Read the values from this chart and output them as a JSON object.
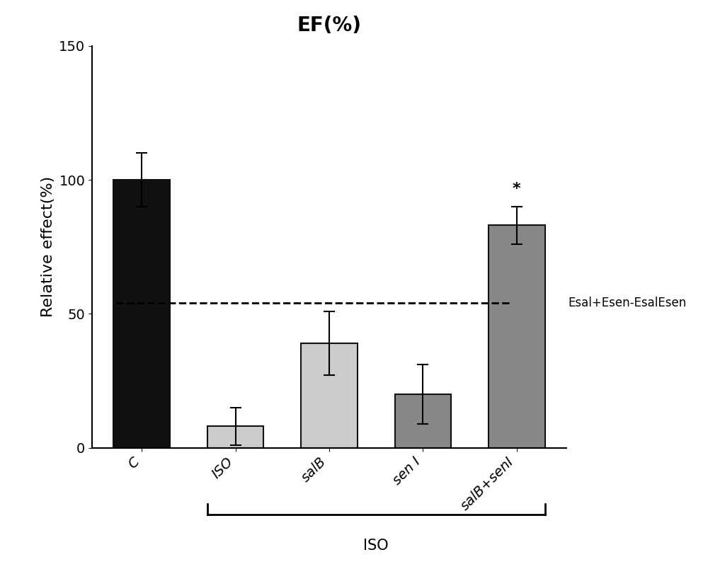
{
  "title": "EF(%)",
  "ylabel": "Relative effect(%)",
  "categories": [
    "C",
    "ISO",
    "salB",
    "sen I",
    "salB+senI"
  ],
  "values": [
    100,
    8,
    39,
    20,
    83
  ],
  "errors": [
    10,
    7,
    12,
    11,
    7
  ],
  "bar_colors": [
    "#111111",
    "#cccccc",
    "#cccccc",
    "#888888",
    "#888888"
  ],
  "bar_edge_colors": [
    "#111111",
    "#111111",
    "#111111",
    "#111111",
    "#111111"
  ],
  "ylim": [
    0,
    150
  ],
  "yticks": [
    0,
    50,
    100,
    150
  ],
  "dashed_line_y": 54,
  "dashed_line_label": "Esal+Esen-EsalEsen",
  "star_annotation_index": 4,
  "star_annotation_text": "*",
  "iso_bracket_label": "ISO",
  "title_fontsize": 20,
  "ylabel_fontsize": 16,
  "tick_fontsize": 14,
  "annotation_fontsize": 16,
  "bar_width": 0.6,
  "background_color": "#ffffff"
}
